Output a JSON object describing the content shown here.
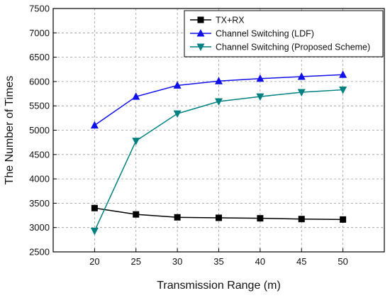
{
  "chart_data": {
    "type": "line",
    "xlabel": "Transmission Range (m)",
    "ylabel": "The Number of Times",
    "xlim": [
      15,
      55
    ],
    "ylim": [
      2500,
      7500
    ],
    "x_ticks": [
      20,
      25,
      30,
      35,
      40,
      45,
      50
    ],
    "y_ticks": [
      2500,
      3000,
      3500,
      4000,
      4500,
      5000,
      5500,
      6000,
      6500,
      7000,
      7500
    ],
    "grid": true,
    "legend_position": "top-right",
    "x": [
      20,
      25,
      30,
      35,
      40,
      45,
      50
    ],
    "series": [
      {
        "name": "TX+RX",
        "color": "#000000",
        "marker": "square",
        "values": [
          3400,
          3270,
          3210,
          3200,
          3190,
          3175,
          3165
        ]
      },
      {
        "name": "Channel Switching (LDF)",
        "color": "#1010e8",
        "marker": "triangle-up",
        "values": [
          5100,
          5690,
          5920,
          6010,
          6060,
          6100,
          6140
        ]
      },
      {
        "name": "Channel Switching (Proposed Scheme)",
        "color": "#008080",
        "marker": "triangle-down",
        "values": [
          2930,
          4780,
          5340,
          5590,
          5690,
          5780,
          5830
        ]
      }
    ]
  }
}
